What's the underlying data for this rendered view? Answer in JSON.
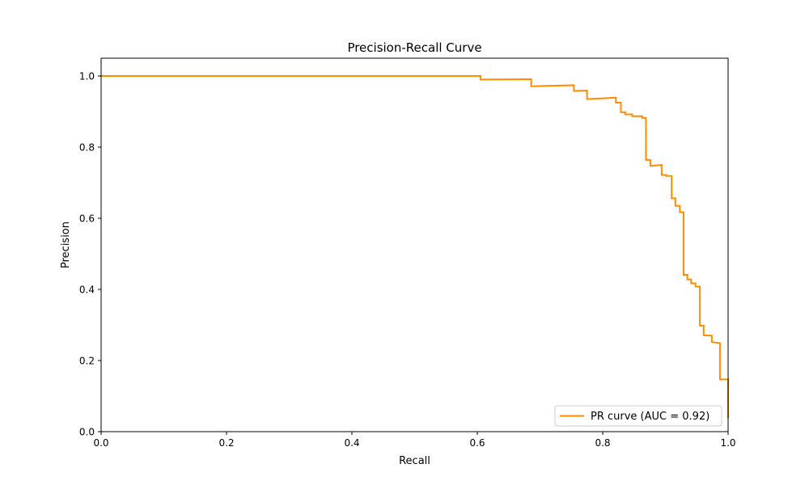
{
  "chart_data": {
    "type": "line",
    "title": "Precision-Recall Curve",
    "xlabel": "Recall",
    "ylabel": "Precision",
    "xlim": [
      0,
      1
    ],
    "ylim": [
      0,
      1.05
    ],
    "xticks": [
      "0.0",
      "0.2",
      "0.4",
      "0.6",
      "0.8",
      "1.0"
    ],
    "yticks": [
      "0.0",
      "0.2",
      "0.4",
      "0.6",
      "0.8",
      "1.0"
    ],
    "grid": false,
    "legend": {
      "placement": "lower right"
    },
    "series": [
      {
        "name": "PR curve (AUC = 0.92)",
        "color": "#ff8c00",
        "step": true,
        "points": [
          [
            0.0,
            1.0
          ],
          [
            0.605,
            1.0
          ],
          [
            0.605,
            0.99
          ],
          [
            0.686,
            0.991
          ],
          [
            0.686,
            0.971
          ],
          [
            0.754,
            0.974
          ],
          [
            0.754,
            0.958
          ],
          [
            0.775,
            0.959
          ],
          [
            0.775,
            0.935
          ],
          [
            0.821,
            0.939
          ],
          [
            0.821,
            0.925
          ],
          [
            0.829,
            0.925
          ],
          [
            0.829,
            0.898
          ],
          [
            0.836,
            0.898
          ],
          [
            0.836,
            0.892
          ],
          [
            0.847,
            0.892
          ],
          [
            0.847,
            0.887
          ],
          [
            0.863,
            0.887
          ],
          [
            0.863,
            0.882
          ],
          [
            0.869,
            0.882
          ],
          [
            0.869,
            0.764
          ],
          [
            0.876,
            0.764
          ],
          [
            0.876,
            0.747
          ],
          [
            0.894,
            0.75
          ],
          [
            0.894,
            0.722
          ],
          [
            0.901,
            0.722
          ],
          [
            0.901,
            0.719
          ],
          [
            0.91,
            0.719
          ],
          [
            0.91,
            0.656
          ],
          [
            0.916,
            0.656
          ],
          [
            0.916,
            0.635
          ],
          [
            0.923,
            0.635
          ],
          [
            0.923,
            0.617
          ],
          [
            0.929,
            0.617
          ],
          [
            0.929,
            0.441
          ],
          [
            0.935,
            0.441
          ],
          [
            0.935,
            0.428
          ],
          [
            0.941,
            0.428
          ],
          [
            0.941,
            0.417
          ],
          [
            0.948,
            0.417
          ],
          [
            0.948,
            0.408
          ],
          [
            0.955,
            0.408
          ],
          [
            0.955,
            0.298
          ],
          [
            0.961,
            0.298
          ],
          [
            0.961,
            0.271
          ],
          [
            0.974,
            0.27
          ],
          [
            0.974,
            0.252
          ],
          [
            0.987,
            0.249
          ],
          [
            0.987,
            0.147
          ],
          [
            0.994,
            0.147
          ],
          [
            0.994,
            0.147
          ],
          [
            1.0,
            0.147
          ],
          [
            1.0,
            0.04
          ]
        ]
      }
    ]
  }
}
